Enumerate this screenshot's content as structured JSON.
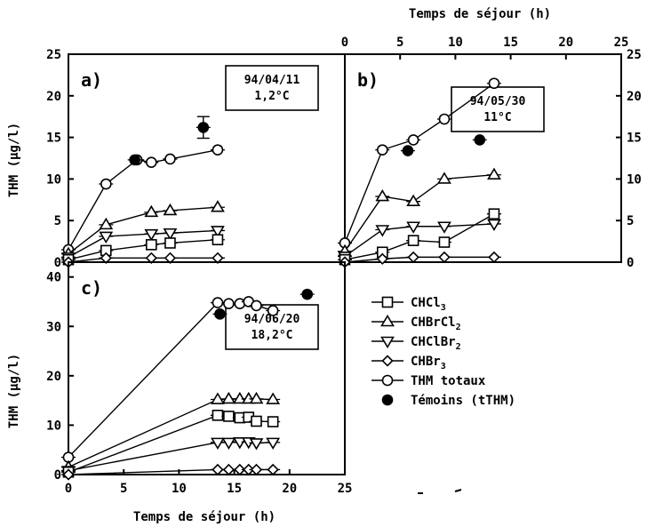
{
  "labels": {
    "top_xlabel": "Temps de séjour (h)",
    "bottom_xlabel": "Temps de séjour (h)",
    "ylabel_top": "THM (µg/l)",
    "ylabel_bottom": "THM (µg/l)"
  },
  "legend": {
    "items": [
      {
        "symbol": "square",
        "label": "CHCl",
        "sub": "3"
      },
      {
        "symbol": "triangle-up",
        "label": "CHBrCl",
        "sub": "2"
      },
      {
        "symbol": "triangle-down",
        "label": "CHClBr",
        "sub": "2"
      },
      {
        "symbol": "diamond",
        "label": "CHBr",
        "sub": "3"
      },
      {
        "symbol": "circle",
        "label": "THM totaux",
        "sub": ""
      },
      {
        "symbol": "filled-circle",
        "label": "Témoins (tTHM)",
        "sub": ""
      }
    ]
  },
  "chart_data": [
    {
      "panel": "a)",
      "type": "line",
      "annotation": [
        "94/04/11",
        "1,2°C"
      ],
      "xlim": [
        0,
        25
      ],
      "ylim": [
        0,
        25
      ],
      "xticks": [
        0,
        5,
        10,
        15,
        20,
        25
      ],
      "yticks": [
        0,
        5,
        10,
        15,
        20,
        25
      ],
      "series": [
        {
          "marker": "circle",
          "x": [
            0,
            3.4,
            6.2,
            7.5,
            9.2,
            13.5
          ],
          "y": [
            1.5,
            9.4,
            12.3,
            12.0,
            12.4,
            13.5
          ]
        },
        {
          "marker": "triangle-up",
          "x": [
            0,
            3.4,
            7.5,
            9.2,
            13.5
          ],
          "y": [
            1.0,
            4.5,
            6.0,
            6.2,
            6.6
          ]
        },
        {
          "marker": "triangle-down",
          "x": [
            0,
            3.4,
            7.5,
            9.2,
            13.5
          ],
          "y": [
            0.6,
            3.1,
            3.4,
            3.5,
            3.8
          ]
        },
        {
          "marker": "square",
          "x": [
            0,
            3.4,
            7.5,
            9.2,
            13.5
          ],
          "y": [
            0.3,
            1.4,
            2.1,
            2.3,
            2.7
          ]
        },
        {
          "marker": "diamond",
          "x": [
            0,
            3.4,
            7.5,
            9.2,
            13.5
          ],
          "y": [
            0.0,
            0.5,
            0.5,
            0.5,
            0.5
          ]
        },
        {
          "marker": "filled-circle",
          "x": [
            6.0,
            12.2
          ],
          "y": [
            12.3,
            16.2
          ]
        }
      ]
    },
    {
      "panel": "b)",
      "type": "line",
      "annotation": [
        "94/05/30",
        "11°C"
      ],
      "xlim": [
        0,
        25
      ],
      "ylim": [
        0,
        25
      ],
      "xticks": [
        0,
        5,
        10,
        15,
        20,
        25
      ],
      "yticks": [
        0,
        5,
        10,
        15,
        20,
        25
      ],
      "series": [
        {
          "marker": "circle",
          "x": [
            0,
            3.4,
            6.2,
            9.0,
            13.5
          ],
          "y": [
            2.3,
            13.5,
            14.7,
            17.2,
            21.5
          ]
        },
        {
          "marker": "triangle-up",
          "x": [
            0,
            3.4,
            6.2,
            9.0,
            13.5
          ],
          "y": [
            1.3,
            7.9,
            7.3,
            10.0,
            10.5
          ]
        },
        {
          "marker": "triangle-down",
          "x": [
            0,
            3.4,
            6.2,
            9.0,
            13.5
          ],
          "y": [
            0.7,
            3.9,
            4.3,
            4.3,
            4.6
          ]
        },
        {
          "marker": "square",
          "x": [
            0,
            3.4,
            6.2,
            9.0,
            13.5
          ],
          "y": [
            0.3,
            1.2,
            2.6,
            2.4,
            5.8
          ]
        },
        {
          "marker": "diamond",
          "x": [
            0,
            3.4,
            6.2,
            9.0,
            13.5
          ],
          "y": [
            0.0,
            0.4,
            0.6,
            0.6,
            0.6
          ]
        },
        {
          "marker": "filled-circle",
          "x": [
            5.7,
            12.2
          ],
          "y": [
            13.4,
            14.7
          ]
        }
      ]
    },
    {
      "panel": "c)",
      "type": "line",
      "annotation": [
        "94/06/20",
        "18,2°C"
      ],
      "xlim": [
        0,
        25
      ],
      "ylim": [
        0,
        43
      ],
      "xticks": [
        0,
        5,
        10,
        15,
        20,
        25
      ],
      "yticks": [
        0,
        10,
        20,
        30,
        40
      ],
      "series": [
        {
          "marker": "circle",
          "x": [
            0,
            13.5,
            14.5,
            15.5,
            16.3,
            17.0,
            18.5
          ],
          "y": [
            3.5,
            34.8,
            34.6,
            34.6,
            35.0,
            34.2,
            33.2
          ]
        },
        {
          "marker": "triangle-up",
          "x": [
            0,
            13.5,
            14.5,
            15.5,
            16.3,
            17.0,
            18.5
          ],
          "y": [
            1.5,
            15.2,
            15.3,
            15.3,
            15.3,
            15.3,
            15.2
          ]
        },
        {
          "marker": "triangle-down",
          "x": [
            0,
            13.5,
            14.5,
            15.5,
            16.3,
            17.0,
            18.5
          ],
          "y": [
            0.8,
            6.5,
            6.5,
            6.6,
            6.6,
            6.4,
            6.5
          ]
        },
        {
          "marker": "square",
          "x": [
            0,
            13.5,
            14.5,
            15.5,
            16.3,
            17.0,
            18.5
          ],
          "y": [
            0.5,
            12.0,
            11.8,
            11.5,
            11.6,
            10.8,
            10.7
          ]
        },
        {
          "marker": "diamond",
          "x": [
            0,
            13.5,
            14.5,
            15.5,
            16.3,
            17.0,
            18.5
          ],
          "y": [
            0.0,
            1.0,
            1.0,
            1.0,
            1.0,
            1.0,
            1.0
          ]
        },
        {
          "marker": "filled-circle",
          "x": [
            13.7,
            21.6
          ],
          "y": [
            32.5,
            36.5
          ]
        }
      ]
    }
  ]
}
